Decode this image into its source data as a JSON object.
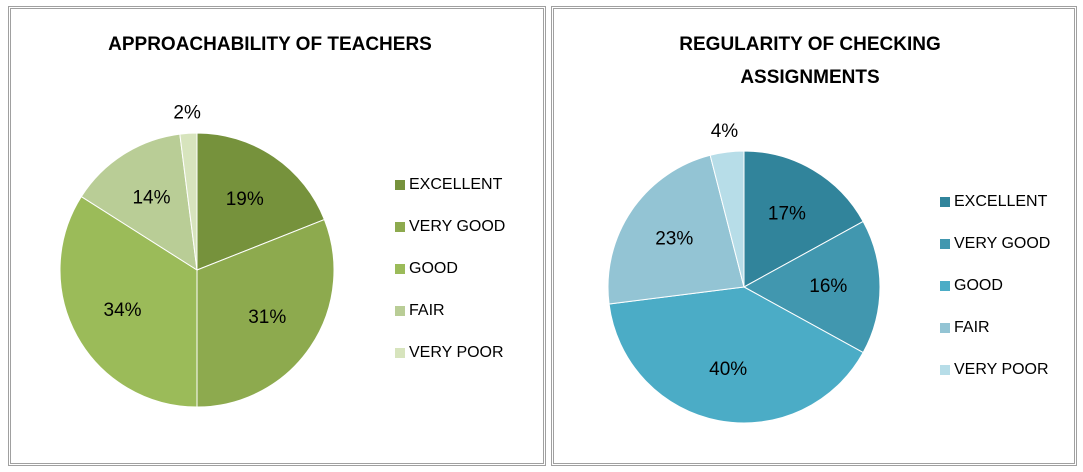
{
  "chart_data": [
    {
      "type": "pie",
      "title": "APPROACHABILITY OF TEACHERS",
      "categories": [
        "EXCELLENT",
        "VERY GOOD",
        "GOOD",
        "FAIR",
        "VERY POOR"
      ],
      "values": [
        19,
        31,
        34,
        14,
        2
      ],
      "value_labels": [
        "19%",
        "31%",
        "34%",
        "14%",
        "2%"
      ],
      "colors": [
        "#76923C",
        "#8DAA4E",
        "#9BBB59",
        "#B9CD96",
        "#D7E4BD"
      ],
      "legend": "right"
    },
    {
      "type": "pie",
      "title": "REGULARITY OF CHECKING ASSIGNMENTS",
      "categories": [
        "EXCELLENT",
        "VERY GOOD",
        "GOOD",
        "FAIR",
        "VERY POOR"
      ],
      "values": [
        17,
        16,
        40,
        23,
        4
      ],
      "value_labels": [
        "17%",
        "16%",
        "40%",
        "23%",
        "4%"
      ],
      "colors": [
        "#31849B",
        "#4197AF",
        "#4BACC6",
        "#93C4D4",
        "#B7DDE8"
      ],
      "legend": "right"
    }
  ]
}
